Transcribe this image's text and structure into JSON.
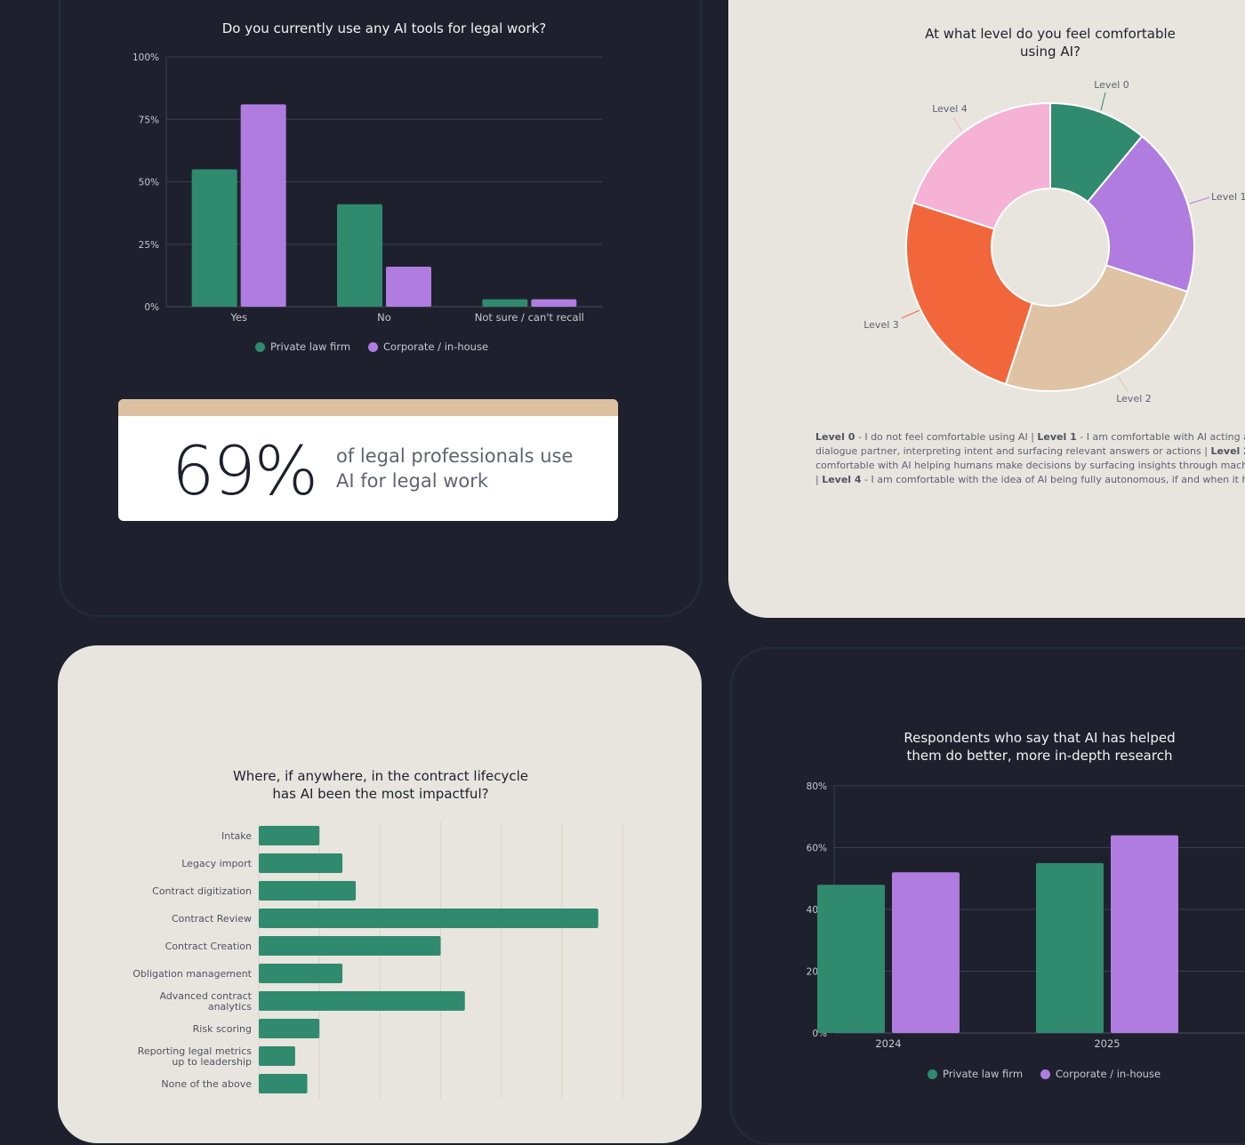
{
  "colors": {
    "background": "#1e212d",
    "panel_light": "#e8e5df",
    "private": "#2f8a6e",
    "corporate": "#b07ce0",
    "card_accent": "#dcc2a2"
  },
  "legend": {
    "private": "Private law firm",
    "corporate": "Corporate / in-house"
  },
  "stat": {
    "value": "69%",
    "line1": "of legal professionals use",
    "line2": "AI for legal work"
  },
  "level_notes": [
    [
      {
        "b": "Level 0",
        "t": " - I do not feel comfortable using AI  |  "
      },
      {
        "b": "Level 1",
        "t": " - I am comfortable with AI acting as a"
      }
    ],
    [
      {
        "b": "",
        "t": "dialogue partner, interpreting intent and surfacing relevant answers or actions  |  "
      },
      {
        "b": "Level 2",
        "t": " - I am"
      }
    ],
    [
      {
        "b": "",
        "t": "comfortable with AI helping humans make decisions by surfacing insights through machine"
      }
    ],
    [
      {
        "b": "",
        "t": "|  "
      },
      {
        "b": "Level 4",
        "t": " - I am comfortable with the idea of AI being fully autonomous, if and when it happens"
      }
    ]
  ],
  "chart_data": [
    {
      "type": "bar",
      "title": "Do you currently use any AI tools for legal work?",
      "categories": [
        "Yes",
        "No",
        "Not sure / can't recall"
      ],
      "series": [
        {
          "name": "Private law firm",
          "values": [
            55,
            41,
            3
          ]
        },
        {
          "name": "Corporate / in-house",
          "values": [
            81,
            16,
            3
          ]
        }
      ],
      "yticks": [
        "0%",
        "25%",
        "50%",
        "75%",
        "100%"
      ],
      "ylim": [
        0,
        100
      ],
      "grid": true,
      "legend": "bottom"
    },
    {
      "type": "pie",
      "title": "At what level do you feel comfortable using AI?",
      "donut": true,
      "labels": [
        "Level 0",
        "Level 1",
        "Level 2",
        "Level 3",
        "Level 4"
      ],
      "values": [
        11,
        19,
        25,
        25,
        20
      ],
      "colors": [
        "#2f8a6e",
        "#b07ce0",
        "#dfc3a4",
        "#f2663c",
        "#f5b2d4"
      ]
    },
    {
      "type": "bar",
      "orientation": "horizontal",
      "title": "Where, if anywhere, in the contract lifecycle has AI been the most impactful?",
      "categories": [
        "Intake",
        "Legacy import",
        "Contract digitization",
        "Contract Review",
        "Contract Creation",
        "Obligation management",
        "Advanced contract analytics",
        "Risk scoring",
        "Reporting legal metrics up to leadership",
        "None of the above"
      ],
      "values": [
        1.0,
        1.38,
        1.6,
        5.6,
        3.0,
        1.38,
        3.4,
        1.0,
        0.6,
        0.8
      ],
      "xlim": [
        0,
        6
      ],
      "grid": true
    },
    {
      "type": "bar",
      "title": "Respondents who say that AI has helped them do better, more in-depth research",
      "categories": [
        "2024",
        "2025"
      ],
      "series": [
        {
          "name": "Private law firm",
          "values": [
            48,
            55
          ]
        },
        {
          "name": "Corporate / in-house",
          "values": [
            52,
            64
          ]
        }
      ],
      "yticks": [
        "0%",
        "20%",
        "40%",
        "60%",
        "80%"
      ],
      "ylim": [
        0,
        80
      ],
      "grid": true,
      "legend": "bottom"
    }
  ]
}
